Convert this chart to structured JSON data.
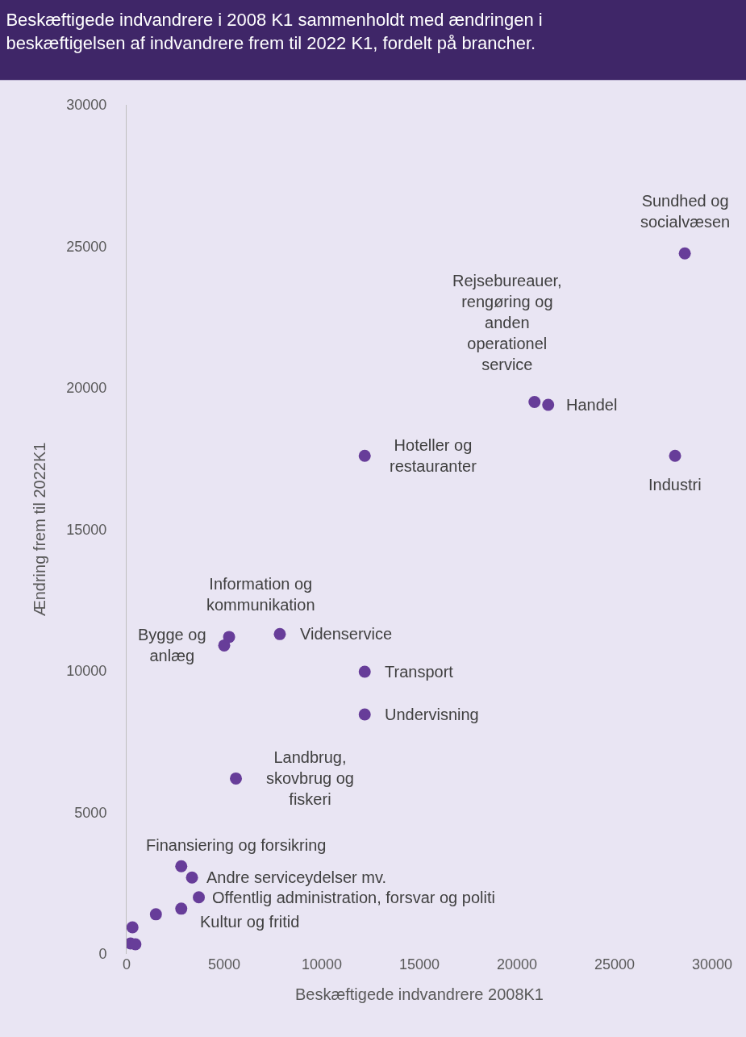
{
  "chart_data": {
    "type": "scatter",
    "title": "Beskæftigede indvandrere i 2008 K1 sammenholdt med ændringen i\nbeskæftigelsen af indvandrere frem til 2022 K1, fordelt på brancher.",
    "xlabel": "Beskæftigede indvandrere 2008K1",
    "ylabel": "Ændring frem til 2022K1",
    "x": [
      28600,
      20900,
      21600,
      12200,
      28100,
      5250,
      5000,
      7850,
      12200,
      12200,
      5600,
      2800,
      3350,
      3700,
      2800,
      1500,
      300,
      200,
      450
    ],
    "values": [
      24750,
      19500,
      19400,
      17600,
      17600,
      11200,
      10900,
      11300,
      9970,
      8460,
      6200,
      3100,
      2700,
      2000,
      1600,
      1400,
      940,
      370,
      340
    ],
    "color": "#673d99",
    "marker": "circle",
    "xlim": [
      0,
      30000
    ],
    "ylim": [
      0,
      30000
    ],
    "xticks": [
      0,
      5000,
      10000,
      15000,
      20000,
      25000,
      30000
    ],
    "yticks": [
      0,
      5000,
      10000,
      15000,
      20000,
      25000,
      30000
    ],
    "grid": false,
    "annotations": [
      {
        "text": "Sundhed og\nsocialvæsen",
        "x": 28600,
        "y": 24750
      },
      {
        "text": "Rejsebureauer,\nrengøring og\nanden\noperationel\nservice",
        "x": 20900,
        "y": 19500
      },
      {
        "text": "Handel",
        "x": 21600,
        "y": 19400
      },
      {
        "text": "Hoteller og\nrestauranter",
        "x": 12200,
        "y": 17600
      },
      {
        "text": "Industri",
        "x": 28100,
        "y": 17600
      },
      {
        "text": "Information og\nkommunikation",
        "x": 5250,
        "y": 11200
      },
      {
        "text": "Bygge og\nanlæg",
        "x": 5000,
        "y": 10900
      },
      {
        "text": "Videnservice",
        "x": 7850,
        "y": 11300
      },
      {
        "text": "Transport",
        "x": 12200,
        "y": 9970
      },
      {
        "text": "Undervisning",
        "x": 12200,
        "y": 8460
      },
      {
        "text": "Landbrug,\nskovbrug og\nfiskeri",
        "x": 5600,
        "y": 6200
      },
      {
        "text": "Finansiering og forsikring",
        "x": 2800,
        "y": 3100
      },
      {
        "text": "Andre serviceydelser mv.",
        "x": 3350,
        "y": 2700
      },
      {
        "text": "Offentlig administration, forsvar og politi",
        "x": 3700,
        "y": 2000
      },
      {
        "text": "Kultur og fritid",
        "x": 2800,
        "y": 1600
      }
    ]
  }
}
